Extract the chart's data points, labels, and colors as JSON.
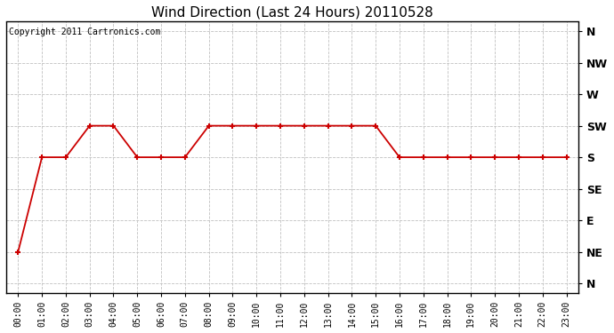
{
  "title": "Wind Direction (Last 24 Hours) 20110528",
  "copyright_text": "Copyright 2011 Cartronics.com",
  "x_labels": [
    "00:00",
    "01:00",
    "02:00",
    "03:00",
    "04:00",
    "05:00",
    "06:00",
    "07:00",
    "08:00",
    "09:00",
    "10:00",
    "11:00",
    "12:00",
    "13:00",
    "14:00",
    "15:00",
    "16:00",
    "17:00",
    "18:00",
    "19:00",
    "20:00",
    "21:00",
    "22:00",
    "23:00"
  ],
  "y_tick_positions": [
    0,
    1,
    2,
    3,
    4,
    5,
    6,
    7,
    8
  ],
  "y_tick_labels": [
    "N",
    "NE",
    "E",
    "SE",
    "S",
    "SW",
    "W",
    "NW",
    "N"
  ],
  "wind_data": [
    1,
    4,
    4,
    5,
    5,
    4,
    4,
    4,
    5,
    5,
    5,
    5,
    5,
    5,
    5,
    5,
    4,
    4,
    4,
    4,
    4,
    4,
    4,
    4
  ],
  "line_color": "#cc0000",
  "marker_color": "#cc0000",
  "bg_color": "#ffffff",
  "grid_color": "#c0c0c0",
  "title_fontsize": 11,
  "copyright_fontsize": 7,
  "tick_label_fontsize": 7,
  "ytick_label_fontsize": 9,
  "fig_width": 6.9,
  "fig_height": 3.75,
  "dpi": 100
}
